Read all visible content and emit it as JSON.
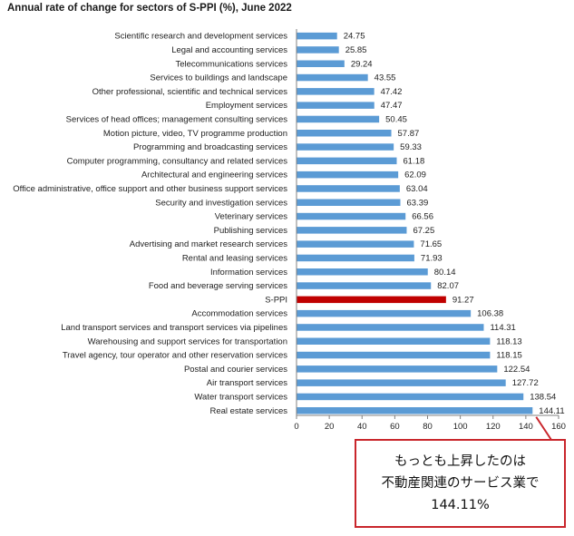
{
  "chart_data": {
    "type": "bar",
    "orientation": "horizontal",
    "title": "Annual rate of change for sectors of S-PPI (%), June 2022",
    "categories": [
      "Scientific research and development services",
      "Legal and accounting services",
      "Telecommunications services",
      "Services to buildings and landscape",
      "Other professional, scientific and technical services",
      "Employment services",
      "Services of head offices; management consulting services",
      "Motion picture, video, TV programme production",
      "Programming and broadcasting services",
      "Computer programming, consultancy and related services",
      "Architectural and engineering services",
      "Office administrative, office support and other business support services",
      "Security and investigation services",
      "Veterinary services",
      "Publishing services",
      "Advertising and market research services",
      "Rental and leasing services",
      "Information services",
      "Food and beverage serving services",
      "S-PPI",
      "Accommodation services",
      "Land transport services and transport services via pipelines",
      "Warehousing and support services for transportation",
      "Travel agency, tour operator and other reservation services",
      "Postal and courier services",
      "Air transport services",
      "Water transport services",
      "Real estate services"
    ],
    "values": [
      24.75,
      25.85,
      29.24,
      43.55,
      47.42,
      47.47,
      50.45,
      57.87,
      59.33,
      61.18,
      62.09,
      63.04,
      63.39,
      66.56,
      67.25,
      71.65,
      71.93,
      80.14,
      82.07,
      91.27,
      106.38,
      114.31,
      118.13,
      118.15,
      122.54,
      127.72,
      138.54,
      144.11
    ],
    "value_labels": [
      "24.75",
      "25.85",
      "29.24",
      "43.55",
      "47.42",
      "47.47",
      "50.45",
      "57.87",
      "59.33",
      "61.18",
      "62.09",
      "63.04",
      "63.39",
      "66.56",
      "67.25",
      "71.65",
      "71.93",
      "80.14",
      "82.07",
      "91.27",
      "106.38",
      "114.31",
      "118.13",
      "118.15",
      "122.54",
      "127.72",
      "138.54",
      "144.11"
    ],
    "highlight_category": "S-PPI",
    "xlim": [
      0,
      160
    ],
    "xticks": [
      "0",
      "20",
      "40",
      "60",
      "80",
      "100",
      "120",
      "140",
      "160"
    ],
    "grid": false,
    "legend": "none",
    "colors": {
      "bar": "#5b9bd5",
      "highlight": "#c00000",
      "callout_border": "#c9262c"
    }
  },
  "callout": {
    "lines": [
      "もっとも上昇したのは",
      "不動産関連のサービス業で",
      "144.11%"
    ]
  }
}
